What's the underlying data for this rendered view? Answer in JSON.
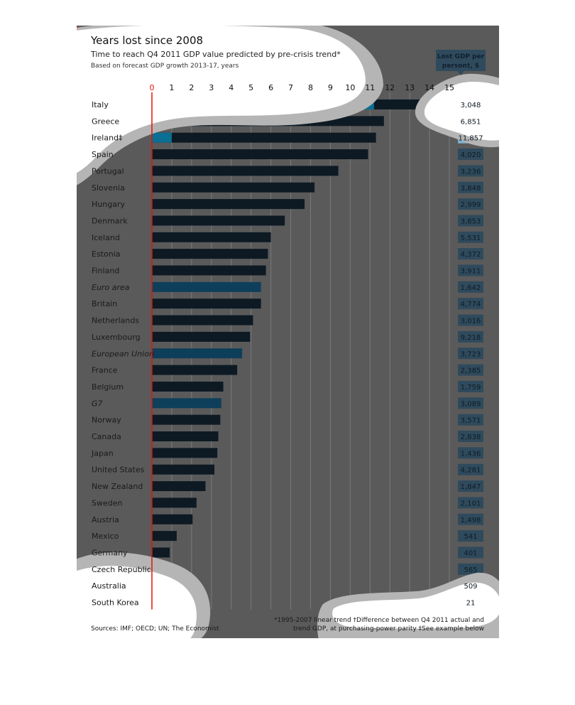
{
  "chart_data": {
    "type": "bar",
    "orientation": "horizontal",
    "title": "Years lost since 2008",
    "subtitle": "Time to reach Q4 2011 GDP value predicted by pre-crisis trend*",
    "subtitle2": "Based on forecast GDP growth 2013-17, years",
    "xlim": [
      0,
      15
    ],
    "xticks": [
      "0",
      "1",
      "2",
      "3",
      "4",
      "5",
      "6",
      "7",
      "8",
      "9",
      "10",
      "11",
      "12",
      "13",
      "14",
      "15"
    ],
    "grid": true,
    "right_column_title": "Lost GDP per person†, $",
    "categories": [
      {
        "label": "Italy",
        "value": 15.0,
        "lost_gdp": "3,048",
        "aggregate": false,
        "highlight": false
      },
      {
        "label": "Greece",
        "value": 11.7,
        "lost_gdp": "6,851",
        "aggregate": false,
        "highlight": false
      },
      {
        "label": "Ireland‡",
        "value": 11.3,
        "lost_gdp": "11,857",
        "aggregate": false,
        "highlight": false
      },
      {
        "label": "Spain",
        "value": 10.9,
        "lost_gdp": "4,020",
        "aggregate": false,
        "highlight": false
      },
      {
        "label": "Portugal",
        "value": 9.4,
        "lost_gdp": "3,236",
        "aggregate": false,
        "highlight": false
      },
      {
        "label": "Slovenia",
        "value": 8.2,
        "lost_gdp": "3,848",
        "aggregate": false,
        "highlight": false
      },
      {
        "label": "Hungary",
        "value": 7.7,
        "lost_gdp": "2,999",
        "aggregate": false,
        "highlight": false
      },
      {
        "label": "Denmark",
        "value": 6.7,
        "lost_gdp": "3,853",
        "aggregate": false,
        "highlight": false
      },
      {
        "label": "Iceland",
        "value": 6.0,
        "lost_gdp": "5,531",
        "aggregate": false,
        "highlight": false
      },
      {
        "label": "Estonia",
        "value": 5.85,
        "lost_gdp": "4,372",
        "aggregate": false,
        "highlight": false
      },
      {
        "label": "Finland",
        "value": 5.75,
        "lost_gdp": "3,911",
        "aggregate": false,
        "highlight": false
      },
      {
        "label": "Euro area",
        "value": 5.5,
        "lost_gdp": "1,642",
        "aggregate": true,
        "highlight": true
      },
      {
        "label": "Britain",
        "value": 5.5,
        "lost_gdp": "4,774",
        "aggregate": false,
        "highlight": false
      },
      {
        "label": "Netherlands",
        "value": 5.1,
        "lost_gdp": "3,016",
        "aggregate": false,
        "highlight": false
      },
      {
        "label": "Luxembourg",
        "value": 4.95,
        "lost_gdp": "9,218",
        "aggregate": false,
        "highlight": false
      },
      {
        "label": "European Union",
        "value": 4.55,
        "lost_gdp": "3,723",
        "aggregate": true,
        "highlight": true
      },
      {
        "label": "France",
        "value": 4.3,
        "lost_gdp": "2,385",
        "aggregate": false,
        "highlight": false
      },
      {
        "label": "Belgium",
        "value": 3.6,
        "lost_gdp": "1,759",
        "aggregate": false,
        "highlight": false
      },
      {
        "label": "G7",
        "value": 3.5,
        "lost_gdp": "3,089",
        "aggregate": true,
        "highlight": true
      },
      {
        "label": "Norway",
        "value": 3.45,
        "lost_gdp": "3,571",
        "aggregate": false,
        "highlight": false
      },
      {
        "label": "Canada",
        "value": 3.35,
        "lost_gdp": "2,838",
        "aggregate": false,
        "highlight": false
      },
      {
        "label": "Japan",
        "value": 3.3,
        "lost_gdp": "1,436",
        "aggregate": false,
        "highlight": false
      },
      {
        "label": "United States",
        "value": 3.15,
        "lost_gdp": "4,281",
        "aggregate": false,
        "highlight": false
      },
      {
        "label": "New Zealand",
        "value": 2.7,
        "lost_gdp": "1,847",
        "aggregate": false,
        "highlight": false
      },
      {
        "label": "Sweden",
        "value": 2.25,
        "lost_gdp": "2,101",
        "aggregate": false,
        "highlight": false
      },
      {
        "label": "Austria",
        "value": 2.05,
        "lost_gdp": "1,498",
        "aggregate": false,
        "highlight": false
      },
      {
        "label": "Mexico",
        "value": 1.25,
        "lost_gdp": "541",
        "aggregate": false,
        "highlight": false
      },
      {
        "label": "Germany",
        "value": 0.9,
        "lost_gdp": "401",
        "aggregate": false,
        "highlight": false
      },
      {
        "label": "Czech Republic",
        "value": 0.75,
        "lost_gdp": "565",
        "aggregate": false,
        "highlight": false
      },
      {
        "label": "Australia",
        "value": 0.4,
        "lost_gdp": "509",
        "aggregate": false,
        "highlight": true
      },
      {
        "label": "South Korea",
        "value": 0.0,
        "lost_gdp": "21",
        "aggregate": false,
        "highlight": false
      }
    ],
    "footnote_left": "Sources: IMF; OECD; UN; The Economist",
    "footnote_right_line1": "*1995-2007 linear trend   †Difference between Q4 2011 actual and",
    "footnote_right_line2": "trend GDP, at purchasing-power parity   ‡See example below",
    "colors": {
      "background": "#5a5a5a",
      "bar": "#0d1a24",
      "bar_highlight": "#0e3f5a",
      "bar_lit": "#0b6f93",
      "zero_line": "#e3120b",
      "accent": "#e3120b",
      "loss_box": "#2f4a5c",
      "loss_box_light": "#7fb0cf",
      "grid": "#7a7a7a",
      "blob": "#ffffff",
      "blob_ring": "#b5b5b5"
    }
  }
}
